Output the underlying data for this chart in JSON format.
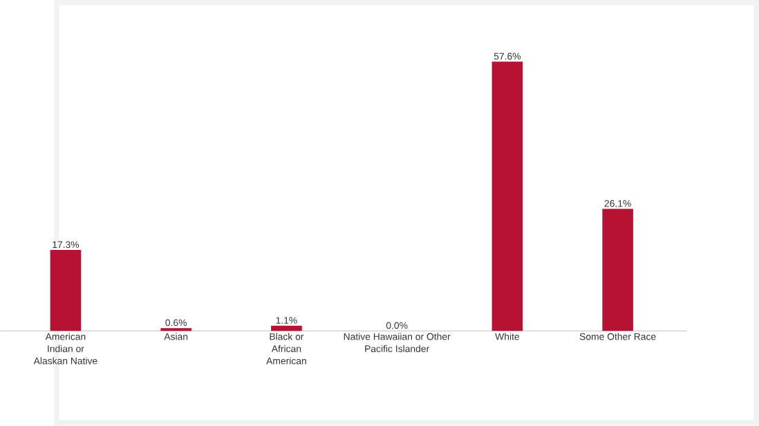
{
  "chart_data": {
    "type": "bar",
    "categories": [
      "American Indian or Alaskan Native",
      "Asian",
      "Black or African American",
      "Native Hawaiian or Other Pacific Islander",
      "White",
      "Some Other Race"
    ],
    "values": [
      17.3,
      0.6,
      1.1,
      0.0,
      57.6,
      26.1
    ],
    "value_labels": [
      "17.3%",
      "0.6%",
      "1.1%",
      "0.0%",
      "57.6%",
      "26.1%"
    ],
    "color": "#b71234"
  }
}
